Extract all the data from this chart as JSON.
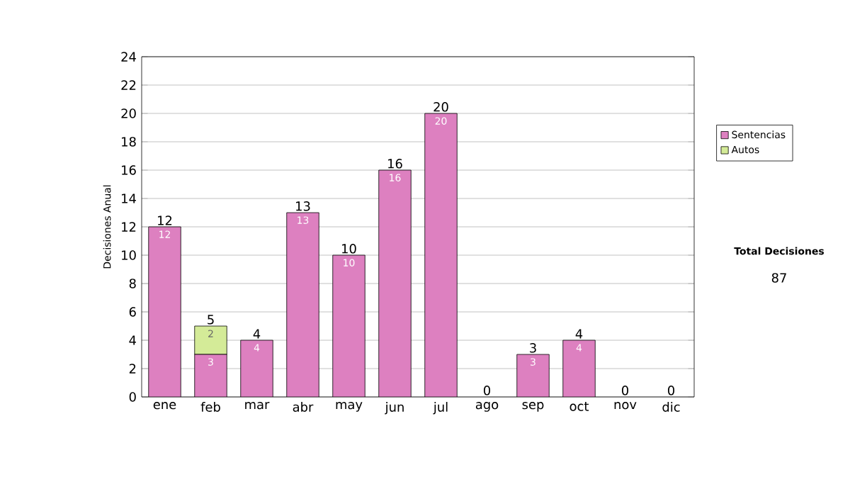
{
  "chart_data": {
    "type": "bar",
    "stacked": true,
    "ylabel": "Decisiones Anual",
    "categories": [
      "ene",
      "feb",
      "mar",
      "abr",
      "may",
      "jun",
      "jul",
      "ago",
      "sep",
      "oct",
      "nov",
      "dic"
    ],
    "series": [
      {
        "name": "Sentencias",
        "color": "#dd80c0",
        "values": [
          12,
          3,
          4,
          13,
          10,
          16,
          20,
          0,
          3,
          4,
          0,
          0
        ],
        "value_labels": [
          "12",
          "3",
          "4",
          "13",
          "10",
          "16",
          "20",
          null,
          "3",
          "4",
          null,
          null
        ]
      },
      {
        "name": "Autos",
        "color": "#d4eb98",
        "values": [
          0,
          2,
          0,
          0,
          0,
          0,
          0,
          0,
          0,
          0,
          0,
          0
        ],
        "value_labels": [
          null,
          "2",
          null,
          null,
          null,
          null,
          null,
          null,
          null,
          null,
          null,
          null
        ]
      }
    ],
    "totals": [
      "12",
      "5",
      "4",
      "13",
      "10",
      "16",
      "20",
      "0",
      "3",
      "4",
      "0",
      "0"
    ],
    "ylim": [
      0,
      24
    ],
    "yticks": [
      0,
      2,
      4,
      6,
      8,
      10,
      12,
      14,
      16,
      18,
      20,
      22,
      24
    ],
    "grid": "y",
    "legend": "right",
    "annotations": [
      "Total Decisiones",
      "87"
    ]
  }
}
